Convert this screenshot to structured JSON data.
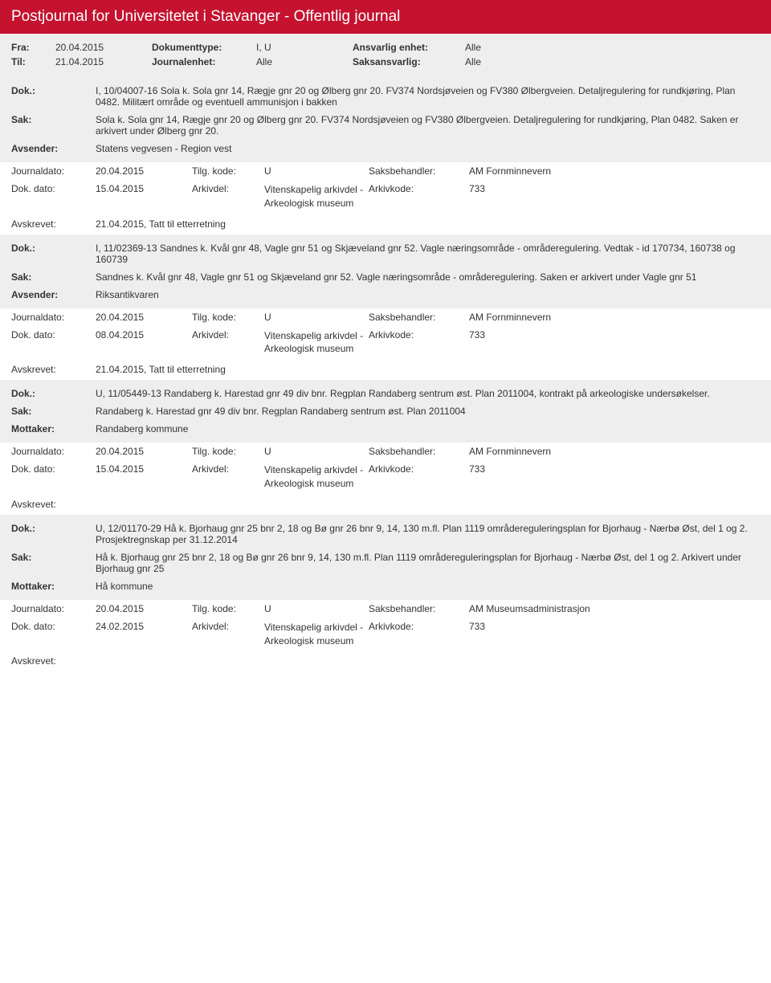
{
  "header": {
    "title": "Postjournal for Universitetet i Stavanger - Offentlig journal"
  },
  "filters": {
    "fra_label": "Fra:",
    "fra": "20.04.2015",
    "til_label": "Til:",
    "til": "21.04.2015",
    "doktype_label": "Dokumenttype:",
    "doktype": "I, U",
    "jenhet_label": "Journalenhet:",
    "jenhet": "Alle",
    "ansvenh_label": "Ansvarlig enhet:",
    "ansvenh": "Alle",
    "saksansv_label": "Saksansvarlig:",
    "saksansv": "Alle"
  },
  "labels": {
    "dok": "Dok.:",
    "sak": "Sak:",
    "avsender": "Avsender:",
    "mottaker": "Mottaker:",
    "journaldato": "Journaldato:",
    "tilgkode": "Tilg. kode:",
    "saksbeh": "Saksbehandler:",
    "dokdato": "Dok. dato:",
    "arkivdel": "Arkivdel:",
    "arkivkode": "Arkivkode:",
    "avskrevet": "Avskrevet:"
  },
  "entries": [
    {
      "dok": "I, 10/04007-16 Sola k. Sola gnr 14, Rægje gnr 20 og Ølberg gnr 20. FV374 Nordsjøveien og FV380 Ølbergveien. Detaljregulering for rundkjøring, Plan 0482. Militært område og eventuell ammunisjon i bakken",
      "sak": "Sola k. Sola gnr 14, Rægje gnr 20 og Ølberg gnr 20. FV374 Nordsjøveien og FV380 Ølbergveien. Detaljregulering for rundkjøring, Plan 0482. Saken er arkivert under Ølberg gnr 20.",
      "party_label": "Avsender:",
      "party": "Statens vegvesen - Region vest",
      "journaldato": "20.04.2015",
      "tilgkode": "U",
      "saksbeh": "AM Fornminnevern",
      "dokdato": "15.04.2015",
      "arkivdel": "Vitenskapelig arkivdel - Arkeologisk museum",
      "arkivkode": "733",
      "avskrevet": "21.04.2015, Tatt til etterretning"
    },
    {
      "dok": "I, 11/02369-13 Sandnes k. Kvål gnr 48, Vagle gnr 51 og Skjæveland gnr 52. Vagle næringsområde - områderegulering. Vedtak - id 170734, 160738 og 160739",
      "sak": "Sandnes k. Kvål gnr 48, Vagle gnr 51 og Skjæveland gnr 52. Vagle næringsområde - områderegulering. Saken er arkivert under Vagle gnr 51",
      "party_label": "Avsender:",
      "party": "Riksantikvaren",
      "journaldato": "20.04.2015",
      "tilgkode": "U",
      "saksbeh": "AM Fornminnevern",
      "dokdato": "08.04.2015",
      "arkivdel": "Vitenskapelig arkivdel - Arkeologisk museum",
      "arkivkode": "733",
      "avskrevet": "21.04.2015, Tatt til etterretning"
    },
    {
      "dok": "U, 11/05449-13 Randaberg k. Harestad gnr 49 div bnr. Regplan Randaberg sentrum øst. Plan 2011004, kontrakt på arkeologiske undersøkelser.",
      "sak": "Randaberg k. Harestad gnr 49 div bnr. Regplan Randaberg sentrum øst. Plan 2011004",
      "party_label": "Mottaker:",
      "party": "Randaberg kommune",
      "journaldato": "20.04.2015",
      "tilgkode": "U",
      "saksbeh": "AM Fornminnevern",
      "dokdato": "15.04.2015",
      "arkivdel": "Vitenskapelig arkivdel - Arkeologisk museum",
      "arkivkode": "733",
      "avskrevet": ""
    },
    {
      "dok": "U, 12/01170-29 Hå k. Bjorhaug gnr 25 bnr 2, 18 og Bø gnr 26 bnr 9, 14, 130 m.fl. Plan 1119 områdereguleringsplan for Bjorhaug - Nærbø Øst, del 1 og 2. Prosjektregnskap per 31.12.2014",
      "sak": "Hå k. Bjorhaug gnr 25 bnr 2, 18 og Bø gnr 26 bnr 9, 14, 130 m.fl. Plan 1119 områdereguleringsplan for Bjorhaug - Nærbø Øst, del 1 og 2. Arkivert under Bjorhaug gnr 25",
      "party_label": "Mottaker:",
      "party": "Hå kommune",
      "journaldato": "20.04.2015",
      "tilgkode": "U",
      "saksbeh": "AM Museumsadministrasjon",
      "dokdato": "24.02.2015",
      "arkivdel": "Vitenskapelig arkivdel - Arkeologisk museum",
      "arkivkode": "733",
      "avskrevet": ""
    }
  ]
}
